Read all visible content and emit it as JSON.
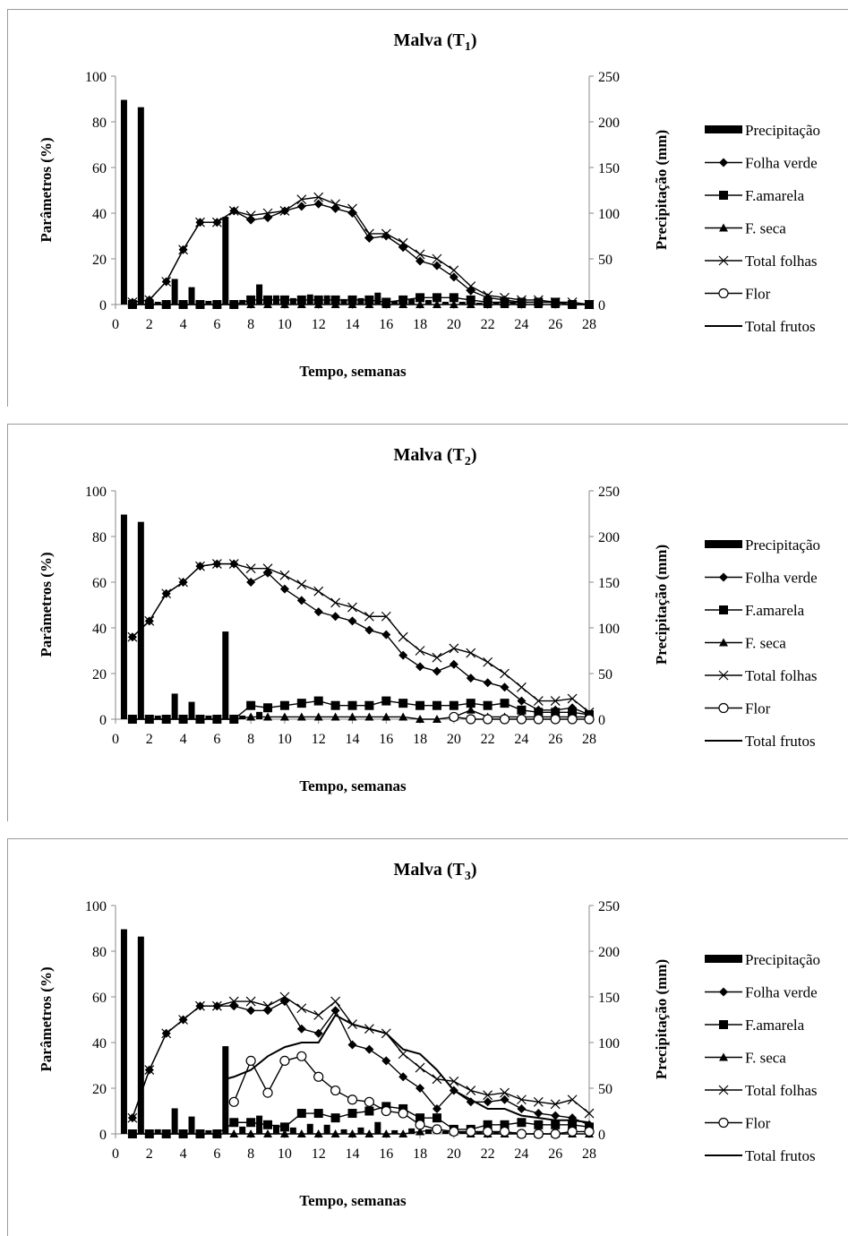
{
  "chart_data": [
    {
      "type": "bar+line",
      "title": "Malva (T",
      "title_sub": "1",
      "title_close": ")",
      "xlabel": "Tempo, semanas",
      "ylabel": "Parâmetros (%)",
      "y2label": "Precipitação (mm)",
      "xlim": [
        0,
        28
      ],
      "ylim": [
        0,
        100
      ],
      "y2lim": [
        0,
        250
      ],
      "x_ticks": [
        "0",
        "2",
        "4",
        "6",
        "8",
        "10",
        "12",
        "14",
        "16",
        "18",
        "20",
        "22",
        "24",
        "26",
        "28"
      ],
      "y_ticks": [
        "0",
        "20",
        "40",
        "60",
        "80",
        "100"
      ],
      "y2_ticks": [
        "0",
        "50",
        "100",
        "150",
        "200",
        "250"
      ],
      "precip_x": [
        0.5,
        1.5,
        2.5,
        3.5,
        4.5,
        5.5,
        6.5,
        7.5,
        8.5,
        9.5,
        10.5,
        11.5,
        12.5,
        13.5,
        14.5,
        15.5,
        16.5,
        17.5,
        18.5,
        19.5,
        20.5,
        21.5,
        22.5,
        23.5
      ],
      "precip_mm": [
        224,
        216,
        3,
        28,
        19,
        4,
        96,
        5,
        22,
        10,
        7,
        11,
        10,
        6,
        7,
        13,
        4,
        6,
        5,
        3,
        3,
        2,
        2,
        2
      ],
      "legend": [
        "Precipitação",
        "Folha verde",
        "F.amarela",
        "F. seca",
        "Total folhas",
        "Flor",
        "Total frutos"
      ],
      "series": [
        {
          "name": "Folha verde",
          "marker": "diamond",
          "x": [
            1,
            2,
            3,
            4,
            5,
            6,
            7,
            8,
            9,
            10,
            11,
            12,
            13,
            14,
            15,
            16,
            17,
            18,
            19,
            20,
            21,
            22,
            23,
            24,
            25,
            26,
            27,
            28
          ],
          "values": [
            1,
            2,
            10,
            24,
            36,
            36,
            41,
            37,
            38,
            41,
            43,
            44,
            42,
            40,
            29,
            30,
            25,
            19,
            17,
            12,
            6,
            3,
            2,
            1,
            1,
            1,
            0,
            0
          ]
        },
        {
          "name": "F.amarela",
          "marker": "square",
          "x": [
            1,
            2,
            3,
            4,
            5,
            6,
            7,
            8,
            9,
            10,
            11,
            12,
            13,
            14,
            15,
            16,
            17,
            18,
            19,
            20,
            21,
            22,
            23,
            24,
            25,
            26,
            27,
            28
          ],
          "values": [
            0,
            0,
            0,
            0,
            0,
            0,
            0,
            2,
            2,
            2,
            2,
            2,
            2,
            2,
            2,
            1,
            2,
            3,
            3,
            3,
            2,
            1,
            1,
            1,
            1,
            1,
            0,
            0
          ]
        },
        {
          "name": "F. seca",
          "marker": "triangle",
          "x": [
            1,
            2,
            3,
            4,
            5,
            6,
            7,
            8,
            9,
            10,
            11,
            12,
            13,
            14,
            15,
            16,
            17,
            18,
            19,
            20,
            21,
            22,
            23,
            24,
            25,
            26,
            27,
            28
          ],
          "values": [
            0,
            0,
            0,
            0,
            0,
            0,
            0,
            0,
            0,
            0,
            0,
            0,
            0,
            0,
            0,
            0,
            0,
            0,
            0,
            0,
            0,
            0,
            0,
            0,
            0,
            0,
            0,
            0
          ]
        },
        {
          "name": "Total folhas",
          "marker": "x",
          "x": [
            1,
            2,
            3,
            4,
            5,
            6,
            7,
            8,
            9,
            10,
            11,
            12,
            13,
            14,
            15,
            16,
            17,
            18,
            19,
            20,
            21,
            22,
            23,
            24,
            25,
            26,
            27,
            28
          ],
          "values": [
            1,
            2,
            10,
            24,
            36,
            36,
            41,
            39,
            40,
            41,
            46,
            47,
            44,
            42,
            31,
            31,
            27,
            22,
            20,
            15,
            8,
            4,
            3,
            2,
            2,
            1,
            1,
            0
          ]
        },
        {
          "name": "Flor",
          "marker": "circle",
          "x": [],
          "values": []
        },
        {
          "name": "Total frutos",
          "marker": "none",
          "x": [],
          "values": []
        }
      ]
    },
    {
      "type": "bar+line",
      "title": "Malva (T",
      "title_sub": "2",
      "title_close": ")",
      "xlabel": "Tempo, semanas",
      "ylabel": "Parâmetros (%)",
      "y2label": "Precipitação (mm)",
      "xlim": [
        0,
        28
      ],
      "ylim": [
        0,
        100
      ],
      "y2lim": [
        0,
        250
      ],
      "x_ticks": [
        "0",
        "2",
        "4",
        "6",
        "8",
        "10",
        "12",
        "14",
        "16",
        "18",
        "20",
        "22",
        "24",
        "26",
        "28"
      ],
      "y_ticks": [
        "0",
        "20",
        "40",
        "60",
        "80",
        "100"
      ],
      "y2_ticks": [
        "0",
        "50",
        "100",
        "150",
        "200",
        "250"
      ],
      "precip_x": [
        0.5,
        1.5,
        2.5,
        3.5,
        4.5,
        5.5,
        6.5,
        7.5,
        8.5
      ],
      "precip_mm": [
        224,
        216,
        4,
        28,
        19,
        4,
        96,
        4,
        8
      ],
      "legend": [
        "Precipitação",
        "Folha verde",
        "F.amarela",
        "F. seca",
        "Total folhas",
        "Flor",
        "Total frutos"
      ],
      "series": [
        {
          "name": "Folha verde",
          "marker": "diamond",
          "x": [
            1,
            2,
            3,
            4,
            5,
            6,
            7,
            8,
            9,
            10,
            11,
            12,
            13,
            14,
            15,
            16,
            17,
            18,
            19,
            20,
            21,
            22,
            23,
            24,
            25,
            26,
            27,
            28
          ],
          "values": [
            36,
            43,
            55,
            60,
            67,
            68,
            68,
            60,
            64,
            57,
            52,
            47,
            45,
            43,
            39,
            37,
            28,
            23,
            21,
            24,
            18,
            16,
            14,
            8,
            4,
            4,
            5,
            2
          ]
        },
        {
          "name": "F.amarela",
          "marker": "square",
          "x": [
            1,
            2,
            3,
            4,
            5,
            6,
            7,
            8,
            9,
            10,
            11,
            12,
            13,
            14,
            15,
            16,
            17,
            18,
            19,
            20,
            21,
            22,
            23,
            24,
            25,
            26,
            27,
            28
          ],
          "values": [
            0,
            0,
            0,
            0,
            0,
            0,
            0,
            6,
            5,
            6,
            7,
            8,
            6,
            6,
            6,
            8,
            7,
            6,
            6,
            6,
            7,
            6,
            7,
            4,
            3,
            3,
            3,
            2
          ]
        },
        {
          "name": "F. seca",
          "marker": "triangle",
          "x": [
            1,
            2,
            3,
            4,
            5,
            6,
            7,
            8,
            9,
            10,
            11,
            12,
            13,
            14,
            15,
            16,
            17,
            18,
            19,
            20,
            21,
            22,
            23,
            24,
            25,
            26,
            27,
            28
          ],
          "values": [
            0,
            0,
            0,
            0,
            0,
            0,
            0,
            1,
            1,
            1,
            1,
            1,
            1,
            1,
            1,
            1,
            1,
            0,
            0,
            1,
            4,
            1,
            1,
            1,
            1,
            1,
            1,
            1
          ]
        },
        {
          "name": "Total folhas",
          "marker": "x",
          "x": [
            1,
            2,
            3,
            4,
            5,
            6,
            7,
            8,
            9,
            10,
            11,
            12,
            13,
            14,
            15,
            16,
            17,
            18,
            19,
            20,
            21,
            22,
            23,
            24,
            25,
            26,
            27,
            28
          ],
          "values": [
            36,
            43,
            55,
            60,
            67,
            68,
            68,
            66,
            66,
            63,
            59,
            56,
            51,
            49,
            45,
            45,
            36,
            30,
            27,
            31,
            29,
            25,
            20,
            14,
            8,
            8,
            9,
            3
          ]
        },
        {
          "name": "Flor",
          "marker": "circle",
          "x": [
            20,
            21,
            22,
            23,
            24,
            25,
            26,
            27,
            28
          ],
          "values": [
            1,
            0,
            0,
            0,
            0,
            0,
            0,
            0,
            0
          ]
        },
        {
          "name": "Total frutos",
          "marker": "none",
          "x": [],
          "values": []
        }
      ]
    },
    {
      "type": "bar+line",
      "title": "Malva (T",
      "title_sub": "3",
      "title_close": ")",
      "xlabel": "Tempo, semanas",
      "ylabel": "Parâmetros (%)",
      "y2label": "Precipitação (mm)",
      "xlim": [
        0,
        28
      ],
      "ylim": [
        0,
        100
      ],
      "y2lim": [
        0,
        250
      ],
      "x_ticks": [
        "0",
        "2",
        "4",
        "6",
        "8",
        "10",
        "12",
        "14",
        "16",
        "18",
        "20",
        "22",
        "24",
        "26",
        "28"
      ],
      "y_ticks": [
        "0",
        "20",
        "40",
        "60",
        "80",
        "100"
      ],
      "y2_ticks": [
        "0",
        "50",
        "100",
        "150",
        "200",
        "250"
      ],
      "precip_x": [
        0.5,
        1.5,
        2.5,
        3.5,
        4.5,
        5.5,
        6.5,
        7.5,
        8.5,
        9.5,
        10.5,
        11.5,
        12.5,
        13.5,
        14.5,
        15.5,
        16.5,
        17.5,
        18.5,
        19.5,
        20.5,
        21.5,
        22.5,
        23.5
      ],
      "precip_mm": [
        224,
        216,
        5,
        28,
        19,
        4,
        96,
        8,
        20,
        10,
        7,
        11,
        10,
        5,
        7,
        13,
        4,
        6,
        5,
        3,
        3,
        2,
        2,
        2
      ],
      "legend": [
        "Precipitação",
        "Folha verde",
        "F.amarela",
        "F. seca",
        "Total folhas",
        "Flor",
        "Total frutos"
      ],
      "series": [
        {
          "name": "Folha verde",
          "marker": "diamond",
          "x": [
            1,
            2,
            3,
            4,
            5,
            6,
            7,
            8,
            9,
            10,
            11,
            12,
            13,
            14,
            15,
            16,
            17,
            18,
            19,
            20,
            21,
            22,
            23,
            24,
            25,
            26,
            27,
            28
          ],
          "values": [
            7,
            28,
            44,
            50,
            56,
            56,
            56,
            54,
            54,
            58,
            46,
            44,
            54,
            39,
            37,
            32,
            25,
            20,
            11,
            19,
            14,
            14,
            15,
            11,
            9,
            8,
            7,
            4
          ]
        },
        {
          "name": "F.amarela",
          "marker": "square",
          "x": [
            1,
            2,
            3,
            4,
            5,
            6,
            7,
            8,
            9,
            10,
            11,
            12,
            13,
            14,
            15,
            16,
            17,
            18,
            19,
            20,
            21,
            22,
            23,
            24,
            25,
            26,
            27,
            28
          ],
          "values": [
            0,
            0,
            0,
            0,
            0,
            0,
            5,
            5,
            4,
            3,
            9,
            9,
            7,
            9,
            10,
            12,
            11,
            7,
            7,
            2,
            2,
            4,
            4,
            5,
            4,
            4,
            4,
            3
          ]
        },
        {
          "name": "F. seca",
          "marker": "triangle",
          "x": [
            1,
            2,
            3,
            4,
            5,
            6,
            7,
            8,
            9,
            10,
            11,
            12,
            13,
            14,
            15,
            16,
            17,
            18,
            19,
            20,
            21,
            22,
            23,
            24,
            25,
            26,
            27,
            28
          ],
          "values": [
            0,
            0,
            0,
            0,
            0,
            0,
            0,
            0,
            0,
            0,
            0,
            0,
            0,
            0,
            0,
            0,
            0,
            1,
            2,
            1,
            0,
            0,
            0,
            0,
            0,
            0,
            0,
            0
          ]
        },
        {
          "name": "Total folhas",
          "marker": "x",
          "x": [
            1,
            2,
            3,
            4,
            5,
            6,
            7,
            8,
            9,
            10,
            11,
            12,
            13,
            14,
            15,
            16,
            17,
            18,
            19,
            20,
            21,
            22,
            23,
            24,
            25,
            26,
            27,
            28
          ],
          "values": [
            7,
            28,
            44,
            50,
            56,
            56,
            58,
            58,
            56,
            60,
            55,
            52,
            58,
            48,
            46,
            44,
            35,
            29,
            24,
            23,
            19,
            17,
            18,
            15,
            14,
            13,
            15,
            9
          ]
        },
        {
          "name": "Flor",
          "marker": "circle",
          "x": [
            7,
            8,
            9,
            10,
            11,
            12,
            13,
            14,
            15,
            16,
            17,
            18,
            19,
            20,
            21,
            22,
            23,
            24,
            25,
            26,
            27,
            28
          ],
          "values": [
            14,
            32,
            18,
            32,
            34,
            25,
            19,
            15,
            14,
            10,
            9,
            4,
            2,
            1,
            1,
            1,
            1,
            0,
            0,
            0,
            1,
            1
          ]
        },
        {
          "name": "Total frutos",
          "marker": "none",
          "x": [
            6.5,
            7,
            8,
            9,
            10,
            11,
            12,
            13,
            14,
            15,
            16,
            17,
            18,
            19,
            20,
            21,
            22,
            23,
            24,
            25,
            26,
            27,
            28
          ],
          "values": [
            24,
            25,
            28,
            34,
            38,
            40,
            40,
            52,
            48,
            46,
            44,
            37,
            35,
            28,
            19,
            15,
            11,
            11,
            8,
            7,
            6,
            6,
            5
          ]
        }
      ]
    }
  ]
}
